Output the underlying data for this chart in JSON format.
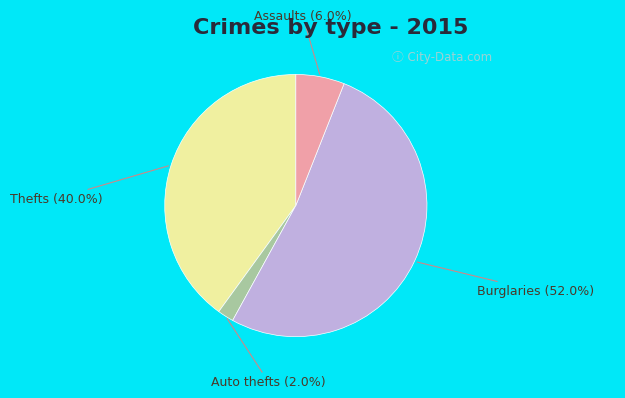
{
  "title": "Crimes by type - 2015",
  "slices": [
    {
      "label": "Thefts (40.0%)",
      "value": 40.0,
      "color": "#f0f0a0"
    },
    {
      "label": "Auto thefts (2.0%)",
      "value": 2.0,
      "color": "#a8c8a0"
    },
    {
      "label": "Burglaries (52.0%)",
      "value": 52.0,
      "color": "#c0b0e0"
    },
    {
      "label": "Assaults (6.0%)",
      "value": 6.0,
      "color": "#f0a0a8"
    }
  ],
  "bg_outer": "#00e8f8",
  "bg_inner": "#d0ece0",
  "title_fontsize": 16,
  "label_fontsize": 9,
  "label_color": "#4a3a2a",
  "watermark": "ⓘ City-Data.com",
  "watermark_color": "#aad0d0",
  "startangle": 90
}
